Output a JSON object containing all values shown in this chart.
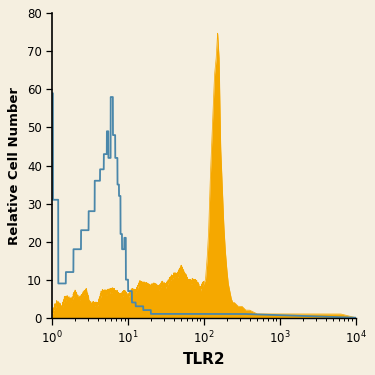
{
  "title": "",
  "xlabel": "TLR2",
  "ylabel": "Relative Cell Number",
  "xlim": [
    1,
    10000
  ],
  "ylim": [
    0,
    80
  ],
  "yticks": [
    0,
    10,
    20,
    30,
    40,
    50,
    60,
    70,
    80
  ],
  "background_color": "#f5efe0",
  "blue_color": "#4a87aa",
  "orange_color": "#f5a800",
  "line_width": 1.3,
  "blue_log_x": [
    0.0,
    0.01,
    0.01,
    0.08,
    0.08,
    0.18,
    0.18,
    0.28,
    0.28,
    0.38,
    0.38,
    0.48,
    0.48,
    0.56,
    0.56,
    0.63,
    0.63,
    0.68,
    0.68,
    0.72,
    0.72,
    0.74,
    0.74,
    0.77,
    0.77,
    0.8,
    0.8,
    0.83,
    0.83,
    0.86,
    0.86,
    0.88,
    0.88,
    0.9,
    0.9,
    0.92,
    0.92,
    0.95,
    0.95,
    0.97,
    0.97,
    1.0,
    1.0,
    1.05,
    1.05,
    1.1,
    1.1,
    1.2,
    1.2,
    1.3,
    1.3,
    1.5,
    1.5,
    1.7,
    1.7,
    1.9,
    1.9,
    2.1,
    2.3,
    2.5,
    4.0
  ],
  "blue_y": [
    59,
    59,
    31,
    31,
    9,
    9,
    12,
    12,
    18,
    18,
    23,
    23,
    28,
    28,
    36,
    36,
    39,
    39,
    43,
    43,
    49,
    49,
    42,
    42,
    58,
    58,
    48,
    48,
    42,
    42,
    35,
    35,
    32,
    32,
    22,
    22,
    18,
    18,
    21,
    21,
    10,
    10,
    7,
    7,
    4,
    4,
    3,
    3,
    2,
    2,
    1,
    1,
    1,
    1,
    1,
    1,
    1,
    1,
    1,
    1,
    0
  ],
  "orange_log_x": [
    0.0,
    0.02,
    0.04,
    0.06,
    0.08,
    0.1,
    0.13,
    0.16,
    0.2,
    0.25,
    0.3,
    0.35,
    0.4,
    0.45,
    0.5,
    0.55,
    0.6,
    0.65,
    0.7,
    0.75,
    0.8,
    0.85,
    0.9,
    0.95,
    1.0,
    1.05,
    1.1,
    1.15,
    1.2,
    1.25,
    1.3,
    1.35,
    1.4,
    1.45,
    1.5,
    1.55,
    1.6,
    1.65,
    1.7,
    1.75,
    1.8,
    1.85,
    1.9,
    1.95,
    2.0,
    2.02,
    2.04,
    2.06,
    2.08,
    2.1,
    2.12,
    2.14,
    2.16,
    2.18,
    2.2,
    2.22,
    2.24,
    2.26,
    2.28,
    2.3,
    2.32,
    2.34,
    2.36,
    2.38,
    2.4,
    2.45,
    2.5,
    2.55,
    2.6,
    2.7,
    2.8,
    2.9,
    3.0,
    3.2,
    3.4,
    3.6,
    3.8,
    4.0
  ],
  "orange_y": [
    0,
    1,
    2,
    3,
    3,
    2,
    2,
    3,
    3,
    4,
    5,
    4,
    5,
    5,
    4,
    4,
    4,
    5,
    5,
    5,
    5,
    5,
    5,
    5,
    6,
    6,
    7,
    7,
    8,
    8,
    8,
    7,
    7,
    8,
    9,
    9,
    10,
    10,
    11,
    10,
    9,
    9,
    8,
    8,
    9,
    10,
    15,
    22,
    35,
    45,
    55,
    64,
    68,
    75,
    68,
    45,
    35,
    25,
    18,
    13,
    9,
    7,
    5,
    4,
    4,
    3,
    3,
    2,
    2,
    1,
    1,
    1,
    1,
    1,
    1,
    1,
    1,
    0
  ]
}
